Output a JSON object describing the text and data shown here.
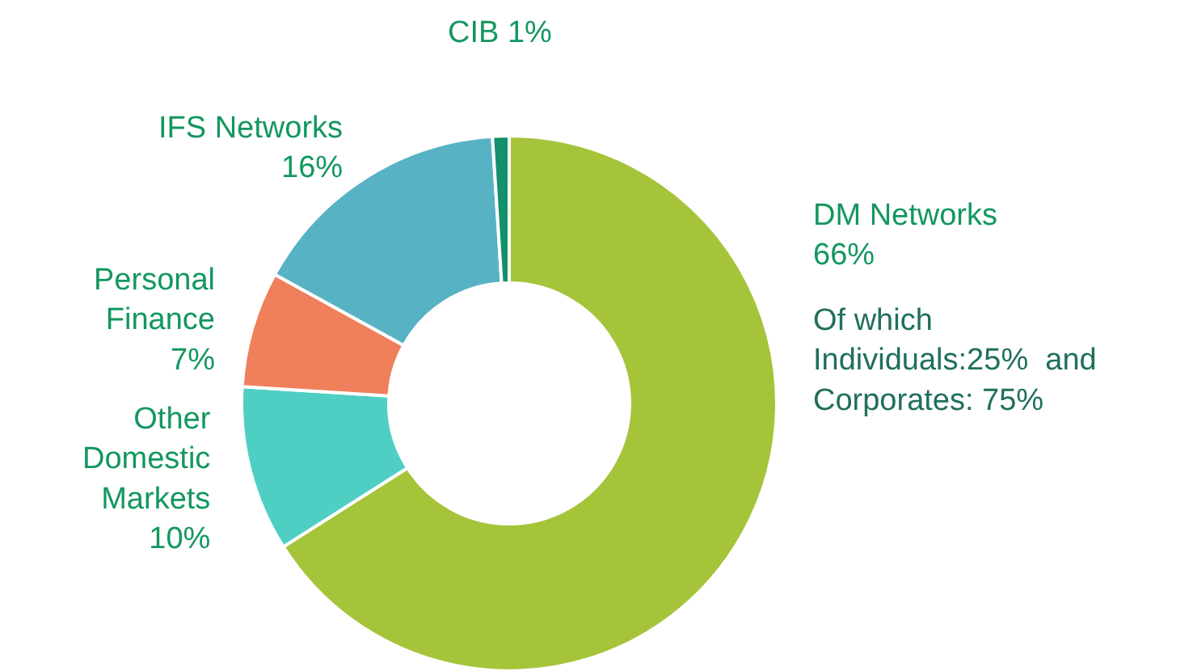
{
  "chart_data": {
    "type": "donut",
    "categories": [
      "DM Networks",
      "Other Domestic Markets",
      "Personal Finance",
      "IFS Networks",
      "CIB"
    ],
    "values": [
      66,
      10,
      7,
      16,
      1
    ],
    "value_labels": [
      "66%",
      "10%",
      "7%",
      "16%",
      "1%"
    ],
    "colors": [
      "#a5c43a",
      "#4fcfc4",
      "#f07f5c",
      "#57b3c4",
      "#14906a"
    ],
    "annotations": [
      "Of which Individuals:25%  and Corporates: 75%"
    ],
    "legend": false
  }
}
